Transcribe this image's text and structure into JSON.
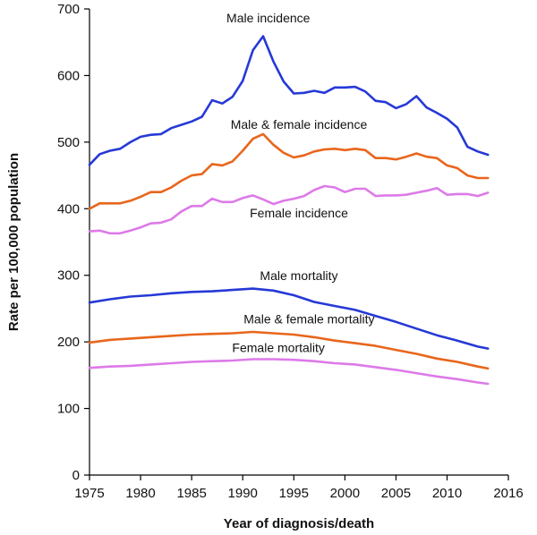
{
  "chart_data": {
    "type": "line",
    "xlabel": "Year of diagnosis/death",
    "ylabel": "Rate per 100,000 population",
    "xlim": [
      1975,
      2016
    ],
    "ylim": [
      0,
      700
    ],
    "xticks": [
      1975,
      1980,
      1985,
      1990,
      1995,
      2000,
      2005,
      2010,
      2016
    ],
    "yticks": [
      0,
      100,
      200,
      300,
      400,
      500,
      600,
      700
    ],
    "grid": false,
    "legend": "inline labels",
    "series": [
      {
        "name": "Male incidence",
        "color": "#2639d6",
        "x": [
          1975,
          1976,
          1977,
          1978,
          1979,
          1980,
          1981,
          1982,
          1983,
          1984,
          1985,
          1986,
          1987,
          1988,
          1989,
          1990,
          1991,
          1992,
          1993,
          1994,
          1995,
          1996,
          1997,
          1998,
          1999,
          2000,
          2001,
          2002,
          2003,
          2004,
          2005,
          2006,
          2007,
          2008,
          2009,
          2010,
          2011,
          2012,
          2013,
          2014
        ],
        "y": [
          466,
          482,
          487,
          490,
          500,
          508,
          511,
          512,
          521,
          526,
          531,
          538,
          563,
          558,
          568,
          592,
          638,
          659,
          621,
          591,
          573,
          574,
          577,
          574,
          582,
          582,
          583,
          576,
          562,
          560,
          551,
          557,
          569,
          552,
          544,
          535,
          522,
          493,
          486,
          481
        ]
      },
      {
        "name": "Male & female incidence",
        "color": "#e8661c",
        "x": [
          1975,
          1976,
          1977,
          1978,
          1979,
          1980,
          1981,
          1982,
          1983,
          1984,
          1985,
          1986,
          1987,
          1988,
          1989,
          1990,
          1991,
          1992,
          1993,
          1994,
          1995,
          1996,
          1997,
          1998,
          1999,
          2000,
          2001,
          2002,
          2003,
          2004,
          2005,
          2006,
          2007,
          2008,
          2009,
          2010,
          2011,
          2012,
          2013,
          2014
        ],
        "y": [
          400,
          408,
          408,
          408,
          412,
          418,
          425,
          425,
          432,
          442,
          450,
          452,
          467,
          465,
          471,
          487,
          505,
          512,
          496,
          484,
          477,
          480,
          486,
          489,
          490,
          488,
          490,
          488,
          476,
          476,
          474,
          478,
          483,
          478,
          476,
          465,
          461,
          450,
          446,
          446
        ]
      },
      {
        "name": "Female incidence",
        "color": "#dd7ae8",
        "x": [
          1975,
          1976,
          1977,
          1978,
          1979,
          1980,
          1981,
          1982,
          1983,
          1984,
          1985,
          1986,
          1987,
          1988,
          1989,
          1990,
          1991,
          1992,
          1993,
          1994,
          1995,
          1996,
          1997,
          1998,
          1999,
          2000,
          2001,
          2002,
          2003,
          2004,
          2005,
          2006,
          2007,
          2008,
          2009,
          2010,
          2011,
          2012,
          2013,
          2014
        ],
        "y": [
          366,
          367,
          363,
          363,
          367,
          372,
          378,
          379,
          384,
          396,
          404,
          404,
          415,
          410,
          410,
          416,
          420,
          414,
          407,
          412,
          415,
          419,
          428,
          434,
          432,
          425,
          430,
          430,
          419,
          420,
          420,
          421,
          424,
          427,
          431,
          421,
          422,
          422,
          419,
          424
        ]
      },
      {
        "name": "Male mortality",
        "color": "#2639d6",
        "x": [
          1975,
          1977,
          1979,
          1981,
          1983,
          1985,
          1987,
          1989,
          1991,
          1993,
          1995,
          1997,
          1999,
          2001,
          2003,
          2005,
          2007,
          2009,
          2011,
          2013,
          2014
        ],
        "y": [
          259,
          264,
          268,
          270,
          273,
          275,
          276,
          278,
          280,
          277,
          270,
          260,
          254,
          248,
          239,
          230,
          220,
          210,
          202,
          193,
          190
        ]
      },
      {
        "name": "Male & female mortality",
        "color": "#e8661c",
        "x": [
          1975,
          1977,
          1979,
          1981,
          1983,
          1985,
          1987,
          1989,
          1991,
          1993,
          1995,
          1997,
          1999,
          2001,
          2003,
          2005,
          2007,
          2009,
          2011,
          2013,
          2014
        ],
        "y": [
          199,
          203,
          205,
          207,
          209,
          211,
          212,
          213,
          215,
          213,
          211,
          207,
          202,
          198,
          194,
          188,
          182,
          175,
          170,
          163,
          160
        ]
      },
      {
        "name": "Female mortality",
        "color": "#dd7ae8",
        "x": [
          1975,
          1977,
          1979,
          1981,
          1983,
          1985,
          1987,
          1989,
          1991,
          1993,
          1995,
          1997,
          1999,
          2001,
          2003,
          2005,
          2007,
          2009,
          2011,
          2013,
          2014
        ],
        "y": [
          161,
          163,
          164,
          166,
          168,
          170,
          171,
          172,
          174,
          174,
          173,
          171,
          168,
          166,
          162,
          158,
          153,
          148,
          144,
          139,
          137
        ]
      }
    ],
    "annotations": [
      {
        "text": "Male incidence",
        "x": 1992.5,
        "y": 680
      },
      {
        "text": "Male & female incidence",
        "x": 1995.5,
        "y": 520
      },
      {
        "text": "Female incidence",
        "x": 1995.5,
        "y": 387
      },
      {
        "text": "Male mortality",
        "x": 1995.5,
        "y": 293
      },
      {
        "text": "Male & female mortality",
        "x": 1996.5,
        "y": 228
      },
      {
        "text": "Female mortality",
        "x": 1993.5,
        "y": 185
      }
    ]
  }
}
